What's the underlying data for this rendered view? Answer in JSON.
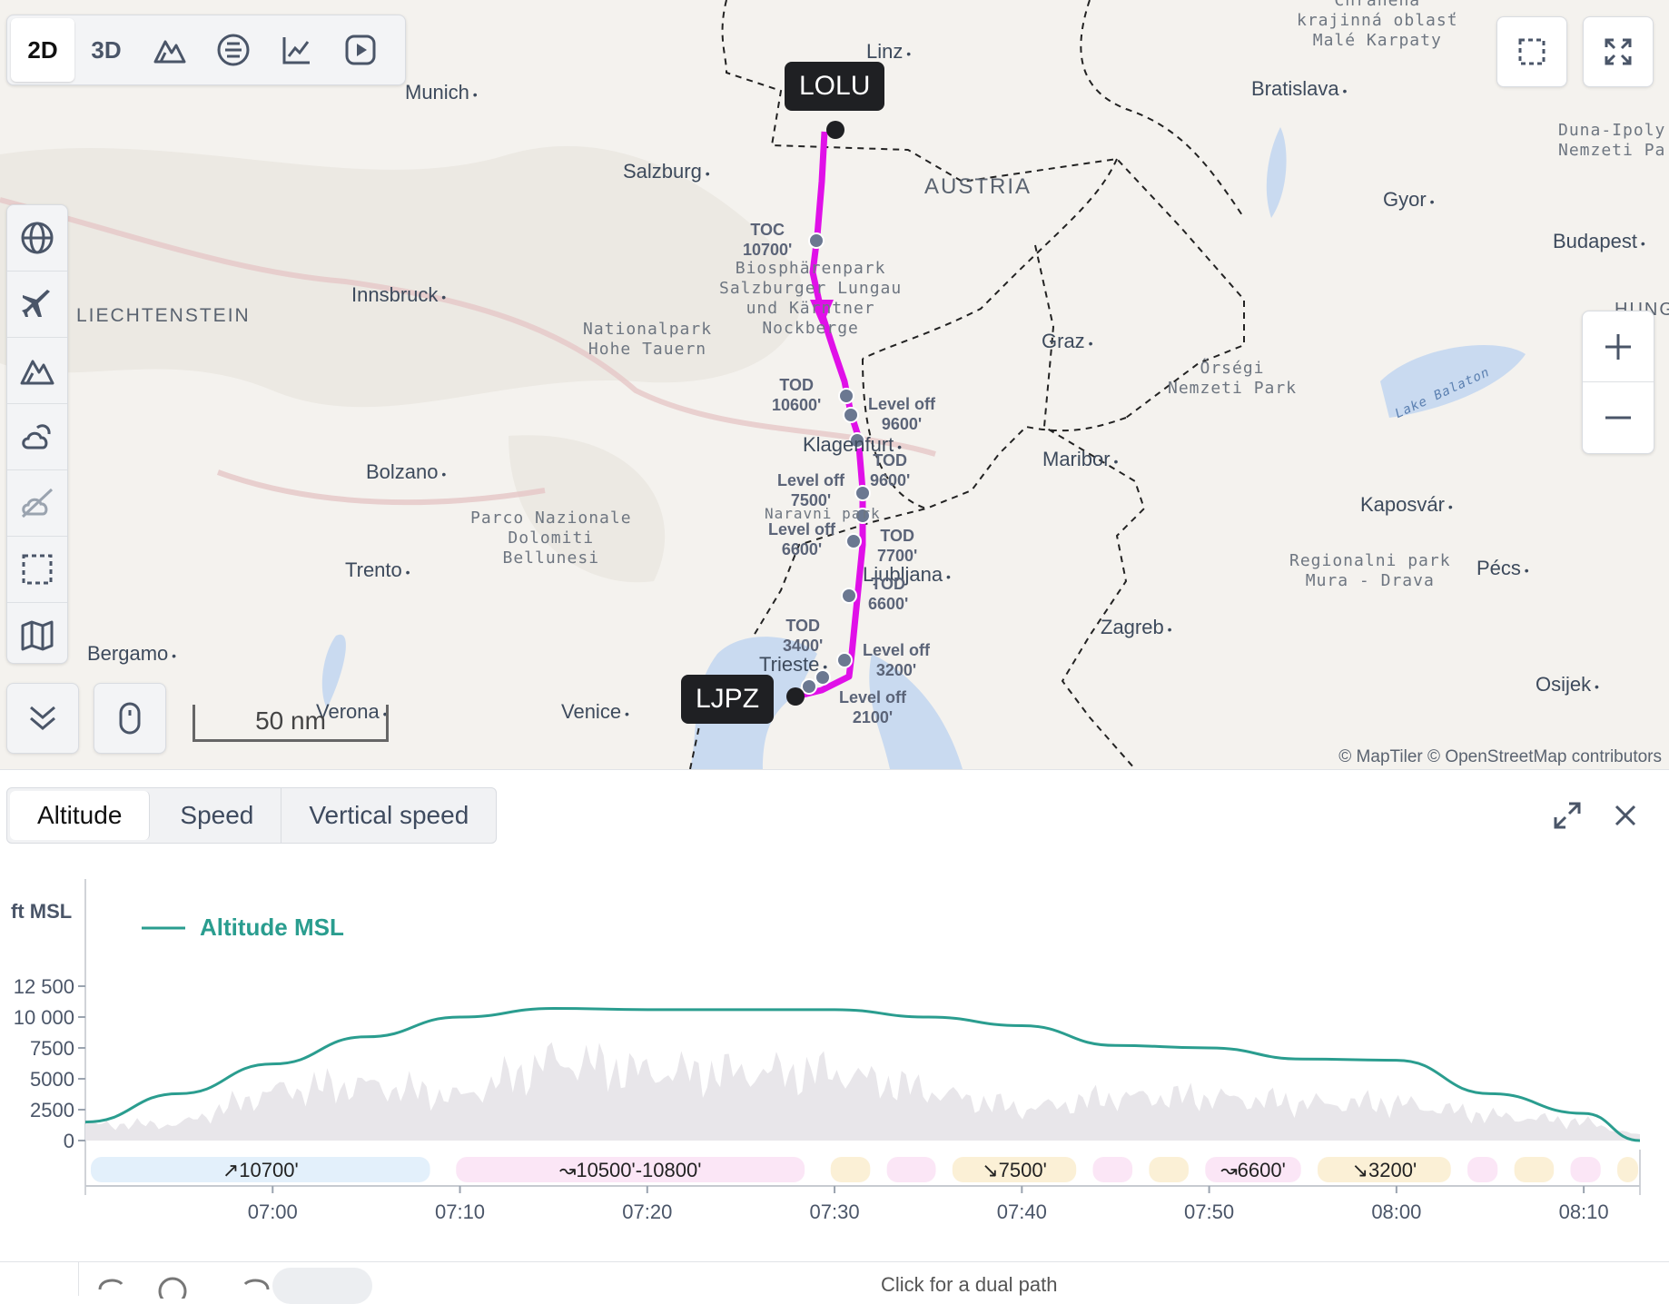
{
  "view_modes": [
    "2D",
    "3D"
  ],
  "cities": [
    {
      "id": "linz",
      "name": "Linz"
    },
    {
      "id": "munich",
      "name": "Munich"
    },
    {
      "id": "salzburg",
      "name": "Salzburg"
    },
    {
      "id": "bratislava",
      "name": "Bratislava"
    },
    {
      "id": "gyor",
      "name": "Gyor"
    },
    {
      "id": "budapest",
      "name": "Budapest"
    },
    {
      "id": "innsbruck",
      "name": "Innsbruck"
    },
    {
      "id": "graz",
      "name": "Graz"
    },
    {
      "id": "bolzano",
      "name": "Bolzano"
    },
    {
      "id": "maribor",
      "name": "Maribor"
    },
    {
      "id": "kaposvar",
      "name": "Kaposvár"
    },
    {
      "id": "trento",
      "name": "Trento"
    },
    {
      "id": "pecs",
      "name": "Pécs"
    },
    {
      "id": "bergamo",
      "name": "Bergamo"
    },
    {
      "id": "zagreb",
      "name": "Zagreb"
    },
    {
      "id": "osijek",
      "name": "Osijek"
    },
    {
      "id": "verona",
      "name": "Verona"
    },
    {
      "id": "venice",
      "name": "Venice"
    },
    {
      "id": "klagenfurt",
      "name": "Klagenfurt"
    },
    {
      "id": "ljubljana",
      "name": "Ljubljana"
    },
    {
      "id": "trieste",
      "name": "Trieste"
    }
  ],
  "parks": [
    {
      "id": "male-karpaty",
      "text": "Chránená\nkrajinná oblasť\nMalé Karpaty"
    },
    {
      "id": "duna-ipoly",
      "text": "Duna-Ipoly\nNemzeti Pa"
    },
    {
      "id": "biosphaerenpark",
      "text": "Biosphärenpark\nSalzburger Lungau\nund Kärntner\nNockberge"
    },
    {
      "id": "hohe-tauern",
      "text": "Nationalpark\nHohe Tauern"
    },
    {
      "id": "orsegi",
      "text": "Őrségi\nNemzeti Park"
    },
    {
      "id": "dolomiti",
      "text": "Parco Nazionale\nDolomiti\nBellunesi"
    },
    {
      "id": "mura-drava",
      "text": "Regionalni park\nMura - Drava"
    },
    {
      "id": "naravni-park",
      "text": "Naravni park"
    }
  ],
  "regions": {
    "austria": "AUSTRIA",
    "liechtenstein": "LIECHTENSTEIN",
    "hungary": "HUNG",
    "lake_balaton": "Lake Balaton"
  },
  "airports": {
    "departure": "LOLU",
    "arrival": "LJPZ"
  },
  "waypoints": [
    {
      "id": "toc-10700",
      "text": "TOC\n10700'"
    },
    {
      "id": "tod-10600",
      "text": "TOD\n10600'"
    },
    {
      "id": "leveloff-9600",
      "text": "Level off\n9600'"
    },
    {
      "id": "tod-9600",
      "text": "TOD\n9600'"
    },
    {
      "id": "leveloff-7500",
      "text": "Level off\n7500'"
    },
    {
      "id": "leveloff-6600",
      "text": "Level off\n6600'"
    },
    {
      "id": "tod-7700",
      "text": "TOD\n7700'"
    },
    {
      "id": "tod-6600",
      "text": "TOD\n6600'"
    },
    {
      "id": "tod-3400",
      "text": "TOD\n3400'"
    },
    {
      "id": "leveloff-3200",
      "text": "Level off\n3200'"
    },
    {
      "id": "leveloff-2100",
      "text": "Level off\n2100'"
    }
  ],
  "scale_label": "50 nm",
  "attribution": "© MapTiler © OpenStreetMap contributors",
  "profile_tabs": [
    "Altitude",
    "Speed",
    "Vertical speed"
  ],
  "colors": {
    "route": "#e010e8",
    "altitude_line": "#2a9d8f",
    "climb_band": "#e3f0fb",
    "cruise_band": "#fbe6f6",
    "descent_band": "#fbf0d6"
  },
  "chart_data": {
    "type": "area",
    "ylabel": "ft MSL",
    "ylim": [
      0,
      12500
    ],
    "yticks": [
      "12 500",
      "10 000",
      "7500",
      "5000",
      "2500",
      "0"
    ],
    "xticks": [
      "07:00",
      "07:10",
      "07:20",
      "07:30",
      "07:40",
      "07:50",
      "08:00",
      "08:10"
    ],
    "x_minutes": [
      -10,
      -5,
      0,
      5,
      10,
      15,
      20,
      25,
      30,
      35,
      40,
      45,
      50,
      55,
      60,
      65,
      70,
      73
    ],
    "series": [
      {
        "name": "Altitude MSL",
        "color": "#2a9d8f",
        "values": [
          1500,
          3800,
          6200,
          8400,
          10000,
          10700,
          10600,
          10600,
          10600,
          10000,
          9300,
          7700,
          7500,
          6600,
          6500,
          3800,
          2200,
          0
        ]
      },
      {
        "values": [
          1300,
          1300,
          4000,
          4500,
          3500,
          6500,
          5500,
          5500,
          5500,
          4000,
          2500,
          3500,
          3500,
          3000,
          3000,
          2000,
          1500,
          400
        ]
      }
    ],
    "phase_labels": [
      "↗10700'",
      "↝10500'-10800'",
      "↘7500'",
      "↝6600'",
      "↘3200'"
    ]
  },
  "footer_hint": "Click for a dual path"
}
